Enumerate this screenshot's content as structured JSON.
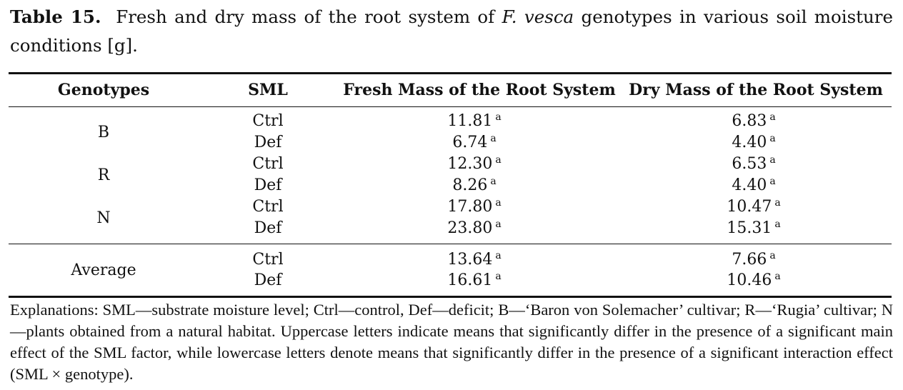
{
  "caption": {
    "label": "Table 15.",
    "text_before": "Fresh and dry mass of the root system of",
    "species": "F. vesca",
    "text_after": "genotypes in various soil moisture conditions [g]."
  },
  "headers": {
    "genotype": "Genotypes",
    "sml": "SML",
    "fresh": "Fresh Mass of the Root System",
    "dry": "Dry Mass of the Root System"
  },
  "groups": [
    {
      "genotype": "B",
      "rows": [
        {
          "sml": "Ctrl",
          "fresh": "11.81",
          "fresh_sig": "a",
          "dry": "6.83",
          "dry_sig": "a"
        },
        {
          "sml": "Def",
          "fresh": "6.74",
          "fresh_sig": "a",
          "dry": "4.40",
          "dry_sig": "a"
        }
      ]
    },
    {
      "genotype": "R",
      "rows": [
        {
          "sml": "Ctrl",
          "fresh": "12.30",
          "fresh_sig": "a",
          "dry": "6.53",
          "dry_sig": "a"
        },
        {
          "sml": "Def",
          "fresh": "8.26",
          "fresh_sig": "a",
          "dry": "4.40",
          "dry_sig": "a"
        }
      ]
    },
    {
      "genotype": "N",
      "rows": [
        {
          "sml": "Ctrl",
          "fresh": "17.80",
          "fresh_sig": "a",
          "dry": "10.47",
          "dry_sig": "a"
        },
        {
          "sml": "Def",
          "fresh": "23.80",
          "fresh_sig": "a",
          "dry": "15.31",
          "dry_sig": "a"
        }
      ]
    },
    {
      "genotype": "Average",
      "rows": [
        {
          "sml": "Ctrl",
          "fresh": "13.64",
          "fresh_sig": "a",
          "dry": "7.66",
          "dry_sig": "a"
        },
        {
          "sml": "Def",
          "fresh": "16.61",
          "fresh_sig": "a",
          "dry": "10.46",
          "dry_sig": "a"
        }
      ]
    }
  ],
  "footnote": "Explanations: SML—substrate moisture level; Ctrl—control, Def—deficit; B—‘Baron von Solemacher’ cultivar; R—‘Rugia’ cultivar; N—plants obtained from a natural habitat. Uppercase letters indicate means that significantly differ in the presence of a significant main effect of the SML factor, while lowercase letters denote means that significantly differ in the presence of a significant interaction effect (SML × genotype)."
}
